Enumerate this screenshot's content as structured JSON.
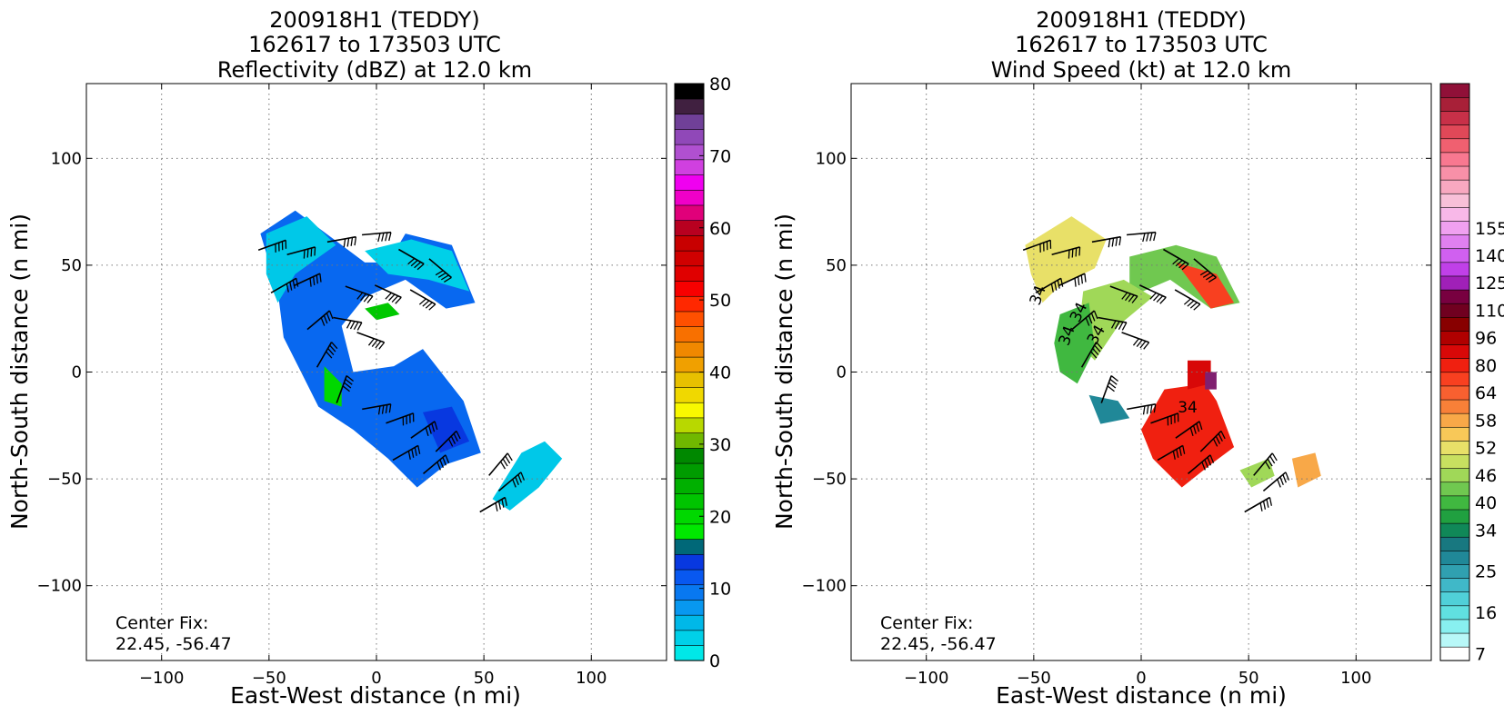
{
  "chart_data": [
    {
      "type": "heatmap",
      "title": [
        "200918H1 (TEDDY)",
        "162617 to 173503 UTC",
        "Reflectivity (dBZ) at 12.0 km"
      ],
      "xlabel": "East-West distance (n mi)",
      "ylabel": "North-South distance (n mi)",
      "xlim": [
        -135,
        135
      ],
      "ylim": [
        -135,
        135
      ],
      "xticks": [
        -100,
        -50,
        0,
        50,
        100
      ],
      "yticks": [
        -100,
        -50,
        0,
        50,
        100
      ],
      "x_tick_labels": [
        "−100",
        "−50",
        "0",
        "50",
        "100"
      ],
      "y_tick_labels": [
        "−100",
        "−50",
        "0",
        "50",
        "100"
      ],
      "grid": true,
      "annotation": [
        "Center Fix:",
        "22.45, -56.47"
      ],
      "colorbar": {
        "min": 0,
        "max": 80,
        "ticks": [
          0,
          10,
          20,
          30,
          40,
          50,
          60,
          70,
          80
        ],
        "labels": [
          "0",
          "10",
          "20",
          "30",
          "40",
          "50",
          "60",
          "70",
          "80"
        ],
        "colors": [
          "#00e8e8",
          "#00d0e8",
          "#00b8e8",
          "#0898f0",
          "#0878f0",
          "#0858f0",
          "#0838e0",
          "#006878",
          "#00e800",
          "#00d800",
          "#00c400",
          "#00b000",
          "#009c00",
          "#008800",
          "#70b800",
          "#b8d800",
          "#f8f800",
          "#f0d800",
          "#e8c000",
          "#f0a000",
          "#f08800",
          "#f87000",
          "#ff5000",
          "#ff2800",
          "#f80000",
          "#e00000",
          "#d00000",
          "#c80000",
          "#b80020",
          "#e0007a",
          "#f000c8",
          "#f000f0",
          "#d040e0",
          "#b050d0",
          "#9048b8",
          "#704098",
          "#402040",
          "#000000"
        ]
      },
      "scalar_field_legend_range": [
        0,
        80
      ],
      "wind_barbs_present": true
    },
    {
      "type": "heatmap",
      "title": [
        "200918H1 (TEDDY)",
        "162617 to 173503 UTC",
        "Wind Speed (kt) at 12.0 km"
      ],
      "xlabel": "East-West distance (n mi)",
      "ylabel": "North-South distance (n mi)",
      "xlim": [
        -135,
        135
      ],
      "ylim": [
        -135,
        135
      ],
      "xticks": [
        -100,
        -50,
        0,
        50,
        100
      ],
      "yticks": [
        -100,
        -50,
        0,
        50,
        100
      ],
      "x_tick_labels": [
        "−100",
        "−50",
        "0",
        "50",
        "100"
      ],
      "y_tick_labels": [
        "−100",
        "−50",
        "0",
        "50",
        "100"
      ],
      "grid": true,
      "annotation": [
        "Center Fix:",
        "22.45, -56.47"
      ],
      "contour_labels": [
        "34",
        "34",
        "34",
        "34",
        "34"
      ],
      "colorbar": {
        "labels": [
          "7",
          "16",
          "25",
          "34",
          "40",
          "46",
          "52",
          "58",
          "64",
          "80",
          "96",
          "110",
          "125",
          "140",
          "155"
        ],
        "label_bins": [
          0,
          3,
          6,
          9,
          11,
          13,
          15,
          17,
          19,
          21,
          23,
          25,
          27,
          29,
          31
        ],
        "colors": [
          "#ffffff",
          "#b8f8f8",
          "#88f0f0",
          "#60e0e0",
          "#50d0d8",
          "#40b8c8",
          "#30a0b0",
          "#208898",
          "#187880",
          "#108858",
          "#20a040",
          "#40b840",
          "#70c850",
          "#a0d858",
          "#c8e060",
          "#e8e068",
          "#f8c858",
          "#f8a848",
          "#f88038",
          "#f86030",
          "#f84020",
          "#f02010",
          "#d80808",
          "#b00000",
          "#880000",
          "#700020",
          "#780040",
          "#a020b8",
          "#c040e8",
          "#d060f0",
          "#e080f0",
          "#f0a0f0",
          "#f8b8e8",
          "#f8c0d8",
          "#f8a8c0",
          "#f890a8",
          "#f87890",
          "#f06070",
          "#e04858",
          "#c83048",
          "#a82038",
          "#901038"
        ]
      },
      "wind_barbs_present": true
    }
  ]
}
